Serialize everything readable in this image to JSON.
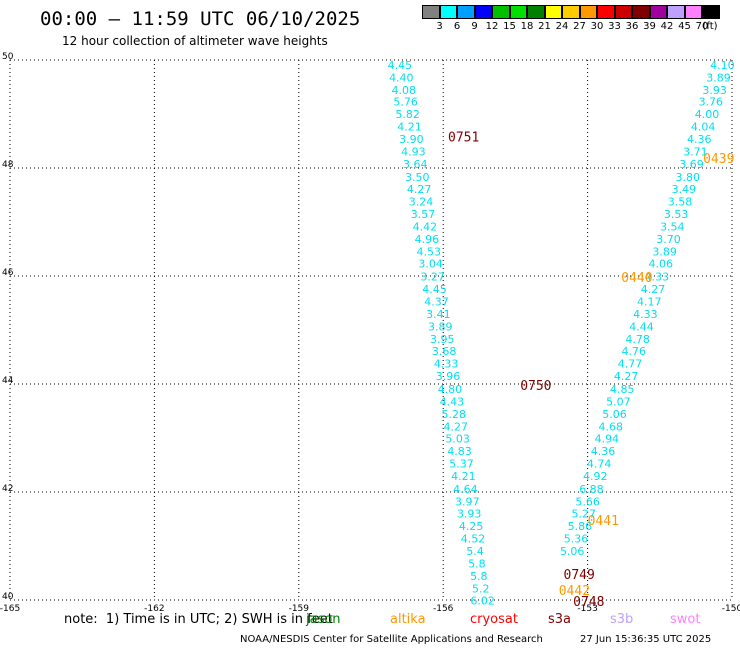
{
  "header": {
    "title": "00:00 – 11:59 UTC 06/10/2025",
    "subtitle": "12 hour collection of altimeter wave heights"
  },
  "legend": {
    "unit": "(ft)",
    "bins": [
      {
        "label": "3",
        "color": "#808080"
      },
      {
        "label": "6",
        "color": "#00ffff"
      },
      {
        "label": "9",
        "color": "#00a0ff"
      },
      {
        "label": "12",
        "color": "#0000ff"
      },
      {
        "label": "15",
        "color": "#00c000"
      },
      {
        "label": "18",
        "color": "#00e000"
      },
      {
        "label": "21",
        "color": "#008000"
      },
      {
        "label": "24",
        "color": "#ffff00"
      },
      {
        "label": "27",
        "color": "#ffcc00"
      },
      {
        "label": "30",
        "color": "#ff9900"
      },
      {
        "label": "33",
        "color": "#ff0000"
      },
      {
        "label": "36",
        "color": "#cc0000"
      },
      {
        "label": "39",
        "color": "#800000"
      },
      {
        "label": "42",
        "color": "#a000a0"
      },
      {
        "label": "45",
        "color": "#c0a0ff"
      },
      {
        "label": "70",
        "color": "#ff80ff"
      },
      {
        "label": "",
        "color": "#000000"
      }
    ]
  },
  "axes": {
    "lon_ticks": [
      "-165",
      "-162",
      "-159",
      "-156",
      "-153",
      "-150"
    ],
    "lat_ticks": [
      "50",
      "48",
      "46",
      "44",
      "42",
      "40"
    ]
  },
  "colors": {
    "swh": "#00dfef",
    "jason": "#008000",
    "altika": "#ff9900",
    "cryosat": "#ff0000",
    "s3a": "#800000",
    "s3b": "#c0a0ff",
    "swot": "#ff80ff",
    "grid": "#000000"
  },
  "tracks": {
    "left": [
      {
        "lon": -156.9,
        "lat": 50.0,
        "v": "4.45"
      },
      {
        "lon": -156.87,
        "lat": 49.77,
        "v": "4.40"
      },
      {
        "lon": -156.82,
        "lat": 49.54,
        "v": "4.08"
      },
      {
        "lon": -156.78,
        "lat": 49.32,
        "v": "5.76"
      },
      {
        "lon": -156.74,
        "lat": 49.09,
        "v": "5.82"
      },
      {
        "lon": -156.7,
        "lat": 48.86,
        "v": "4.21"
      },
      {
        "lon": -156.66,
        "lat": 48.63,
        "v": "3.90"
      },
      {
        "lon": -156.62,
        "lat": 48.4,
        "v": "4.93"
      },
      {
        "lon": -156.58,
        "lat": 48.17,
        "v": "3.64"
      },
      {
        "lon": -156.54,
        "lat": 47.93,
        "v": "3.50"
      },
      {
        "lon": -156.5,
        "lat": 47.7,
        "v": "4.27"
      },
      {
        "lon": -156.46,
        "lat": 47.47,
        "v": "3.24"
      },
      {
        "lon": -156.42,
        "lat": 47.24,
        "v": "3.57"
      },
      {
        "lon": -156.38,
        "lat": 47.01,
        "v": "4.42"
      },
      {
        "lon": -156.34,
        "lat": 46.78,
        "v": "4.96"
      },
      {
        "lon": -156.3,
        "lat": 46.55,
        "v": "4.53"
      },
      {
        "lon": -156.26,
        "lat": 46.32,
        "v": "3.04"
      },
      {
        "lon": -156.22,
        "lat": 46.08,
        "v": "3.27"
      },
      {
        "lon": -156.18,
        "lat": 45.85,
        "v": "4.45"
      },
      {
        "lon": -156.14,
        "lat": 45.62,
        "v": "4.37"
      },
      {
        "lon": -156.1,
        "lat": 45.39,
        "v": "3.41"
      },
      {
        "lon": -156.06,
        "lat": 45.16,
        "v": "3.89"
      },
      {
        "lon": -156.02,
        "lat": 44.93,
        "v": "3.95"
      },
      {
        "lon": -155.98,
        "lat": 44.7,
        "v": "3.68"
      },
      {
        "lon": -155.94,
        "lat": 44.47,
        "v": "4.33"
      },
      {
        "lon": -155.9,
        "lat": 44.24,
        "v": "3.96"
      },
      {
        "lon": -155.86,
        "lat": 44.0,
        "v": "4.80"
      },
      {
        "lon": -155.82,
        "lat": 43.77,
        "v": "4.43"
      },
      {
        "lon": -155.78,
        "lat": 43.54,
        "v": "5.28"
      },
      {
        "lon": -155.74,
        "lat": 43.31,
        "v": "4.27"
      },
      {
        "lon": -155.7,
        "lat": 43.08,
        "v": "5.03"
      },
      {
        "lon": -155.66,
        "lat": 42.85,
        "v": "4.83"
      },
      {
        "lon": -155.62,
        "lat": 42.62,
        "v": "5.37"
      },
      {
        "lon": -155.58,
        "lat": 42.39,
        "v": "4.21"
      },
      {
        "lon": -155.54,
        "lat": 42.15,
        "v": "4.64"
      },
      {
        "lon": -155.5,
        "lat": 41.92,
        "v": "3.97"
      },
      {
        "lon": -155.46,
        "lat": 41.69,
        "v": "3.93"
      },
      {
        "lon": -155.42,
        "lat": 41.46,
        "v": "4.25"
      },
      {
        "lon": -155.38,
        "lat": 41.23,
        "v": "4.52"
      },
      {
        "lon": -155.34,
        "lat": 41.0,
        "v": "5.4"
      },
      {
        "lon": -155.3,
        "lat": 40.77,
        "v": "5.8"
      },
      {
        "lon": -155.26,
        "lat": 40.54,
        "v": "5.8"
      },
      {
        "lon": -155.22,
        "lat": 40.31,
        "v": "5.2"
      },
      {
        "lon": -155.18,
        "lat": 40.08,
        "v": "6.02"
      }
    ],
    "right": [
      {
        "lon": -150.2,
        "lat": 50.0,
        "v": "4.10"
      },
      {
        "lon": -150.28,
        "lat": 49.77,
        "v": "3.89"
      },
      {
        "lon": -150.36,
        "lat": 49.54,
        "v": "3.93"
      },
      {
        "lon": -150.44,
        "lat": 49.32,
        "v": "3.76"
      },
      {
        "lon": -150.52,
        "lat": 49.09,
        "v": "4.00"
      },
      {
        "lon": -150.6,
        "lat": 48.86,
        "v": "4.04"
      },
      {
        "lon": -150.68,
        "lat": 48.63,
        "v": "4.36"
      },
      {
        "lon": -150.76,
        "lat": 48.4,
        "v": "3.71"
      },
      {
        "lon": -150.84,
        "lat": 48.17,
        "v": "3.69"
      },
      {
        "lon": -150.92,
        "lat": 47.93,
        "v": "3.80"
      },
      {
        "lon": -151.0,
        "lat": 47.7,
        "v": "3.49"
      },
      {
        "lon": -151.08,
        "lat": 47.47,
        "v": "3.58"
      },
      {
        "lon": -151.16,
        "lat": 47.24,
        "v": "3.53"
      },
      {
        "lon": -151.24,
        "lat": 47.01,
        "v": "3.54"
      },
      {
        "lon": -151.32,
        "lat": 46.78,
        "v": "3.70"
      },
      {
        "lon": -151.4,
        "lat": 46.55,
        "v": "3.89"
      },
      {
        "lon": -151.48,
        "lat": 46.32,
        "v": "4.06"
      },
      {
        "lon": -151.56,
        "lat": 46.08,
        "v": "4.33"
      },
      {
        "lon": -151.64,
        "lat": 45.85,
        "v": "4.27"
      },
      {
        "lon": -151.72,
        "lat": 45.62,
        "v": "4.17"
      },
      {
        "lon": -151.8,
        "lat": 45.39,
        "v": "4.33"
      },
      {
        "lon": -151.88,
        "lat": 45.16,
        "v": "4.44"
      },
      {
        "lon": -151.96,
        "lat": 44.93,
        "v": "4.78"
      },
      {
        "lon": -152.04,
        "lat": 44.7,
        "v": "4.76"
      },
      {
        "lon": -152.12,
        "lat": 44.47,
        "v": "4.77"
      },
      {
        "lon": -152.2,
        "lat": 44.24,
        "v": "4.27"
      },
      {
        "lon": -152.28,
        "lat": 44.0,
        "v": "4.85"
      },
      {
        "lon": -152.36,
        "lat": 43.77,
        "v": "5.07"
      },
      {
        "lon": -152.44,
        "lat": 43.54,
        "v": "5.06"
      },
      {
        "lon": -152.52,
        "lat": 43.31,
        "v": "4.68"
      },
      {
        "lon": -152.6,
        "lat": 43.08,
        "v": "4.94"
      },
      {
        "lon": -152.68,
        "lat": 42.85,
        "v": "4.36"
      },
      {
        "lon": -152.76,
        "lat": 42.62,
        "v": "4.74"
      },
      {
        "lon": -152.84,
        "lat": 42.39,
        "v": "4.92"
      },
      {
        "lon": -152.92,
        "lat": 42.15,
        "v": "6.88"
      },
      {
        "lon": -153.0,
        "lat": 41.92,
        "v": "5.66"
      },
      {
        "lon": -153.08,
        "lat": 41.69,
        "v": "5.27"
      },
      {
        "lon": -153.16,
        "lat": 41.46,
        "v": "5.86"
      },
      {
        "lon": -153.24,
        "lat": 41.23,
        "v": "5.36"
      },
      {
        "lon": -153.32,
        "lat": 41.0,
        "v": "5.06"
      }
    ]
  },
  "pass_times": [
    {
      "label": "0751",
      "lon": -155.9,
      "lat": 48.6,
      "sat": "s3a"
    },
    {
      "label": "0750",
      "lon": -154.4,
      "lat": 44.0,
      "sat": "s3a"
    },
    {
      "label": "0749",
      "lon": -153.5,
      "lat": 40.5,
      "sat": "s3a"
    },
    {
      "label": "0748",
      "lon": -153.3,
      "lat": 40.0,
      "sat": "s3a"
    },
    {
      "label": "0439",
      "lon": -150.6,
      "lat": 48.2,
      "sat": "altika"
    },
    {
      "label": "0440",
      "lon": -152.3,
      "lat": 46.0,
      "sat": "altika"
    },
    {
      "label": "0441",
      "lon": -153.0,
      "lat": 41.5,
      "sat": "altika"
    },
    {
      "label": "0442",
      "lon": -153.6,
      "lat": 40.2,
      "sat": "altika"
    }
  ],
  "footer": {
    "note": "note:  1) Time is in UTC; 2) SWH is in feet",
    "satellites": [
      {
        "name": "jason",
        "color_key": "jason"
      },
      {
        "name": "altika",
        "color_key": "altika"
      },
      {
        "name": "cryosat",
        "color_key": "cryosat"
      },
      {
        "name": "s3a",
        "color_key": "s3a"
      },
      {
        "name": "s3b",
        "color_key": "s3b"
      },
      {
        "name": "swot",
        "color_key": "swot"
      }
    ],
    "credit": "NOAA/NESDIS Center for Satellite Applications and Research",
    "timestamp": "27 Jun 15:36:35 UTC 2025"
  }
}
